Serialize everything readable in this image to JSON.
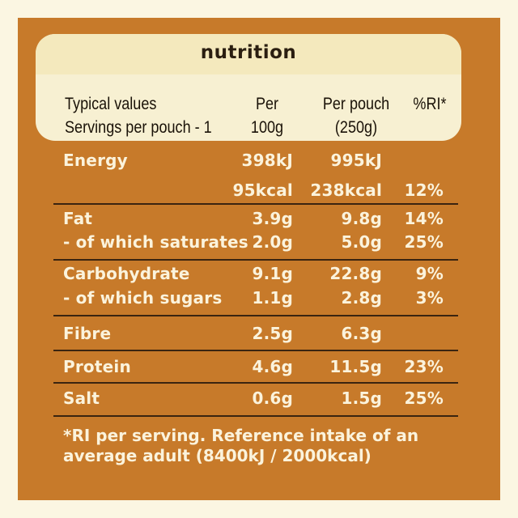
{
  "title": "nutrition",
  "header": {
    "col1_line1": "Typical values",
    "col1_line2": "Servings per pouch - 1",
    "col2_line1": "Per",
    "col2_line2": "100g",
    "col3_line1": "Per pouch",
    "col3_line2": "(250g)",
    "col4_line1": "%RI*"
  },
  "rows": [
    {
      "label": "Energy",
      "per100": "398kJ",
      "perPouch": "995kJ",
      "ri": ""
    },
    {
      "label": "",
      "per100": "95kcal",
      "perPouch": "238kcal",
      "ri": "12%"
    },
    {
      "label": "Fat",
      "per100": "3.9g",
      "perPouch": "9.8g",
      "ri": "14%"
    },
    {
      "label": "- of which saturates",
      "per100": "2.0g",
      "perPouch": "5.0g",
      "ri": "25%"
    },
    {
      "label": "Carbohydrate",
      "per100": "9.1g",
      "perPouch": "22.8g",
      "ri": "9%"
    },
    {
      "label": "- of which sugars",
      "per100": "1.1g",
      "perPouch": "2.8g",
      "ri": "3%"
    },
    {
      "label": "Fibre",
      "per100": "2.5g",
      "perPouch": "6.3g",
      "ri": ""
    },
    {
      "label": "Protein",
      "per100": "4.6g",
      "perPouch": "11.5g",
      "ri": "23%"
    },
    {
      "label": "Salt",
      "per100": "0.6g",
      "perPouch": "1.5g",
      "ri": "25%"
    }
  ],
  "footnote": {
    "line1": "*RI per serving. Reference intake of an",
    "line2": "average adult (8400kJ / 2000kcal)"
  },
  "colors": {
    "background": "#c77a2a",
    "border": "#fbf6e2",
    "header": "#f7f0d2",
    "text_light": "#fbf3dc",
    "text_dark": "#1a1208"
  }
}
